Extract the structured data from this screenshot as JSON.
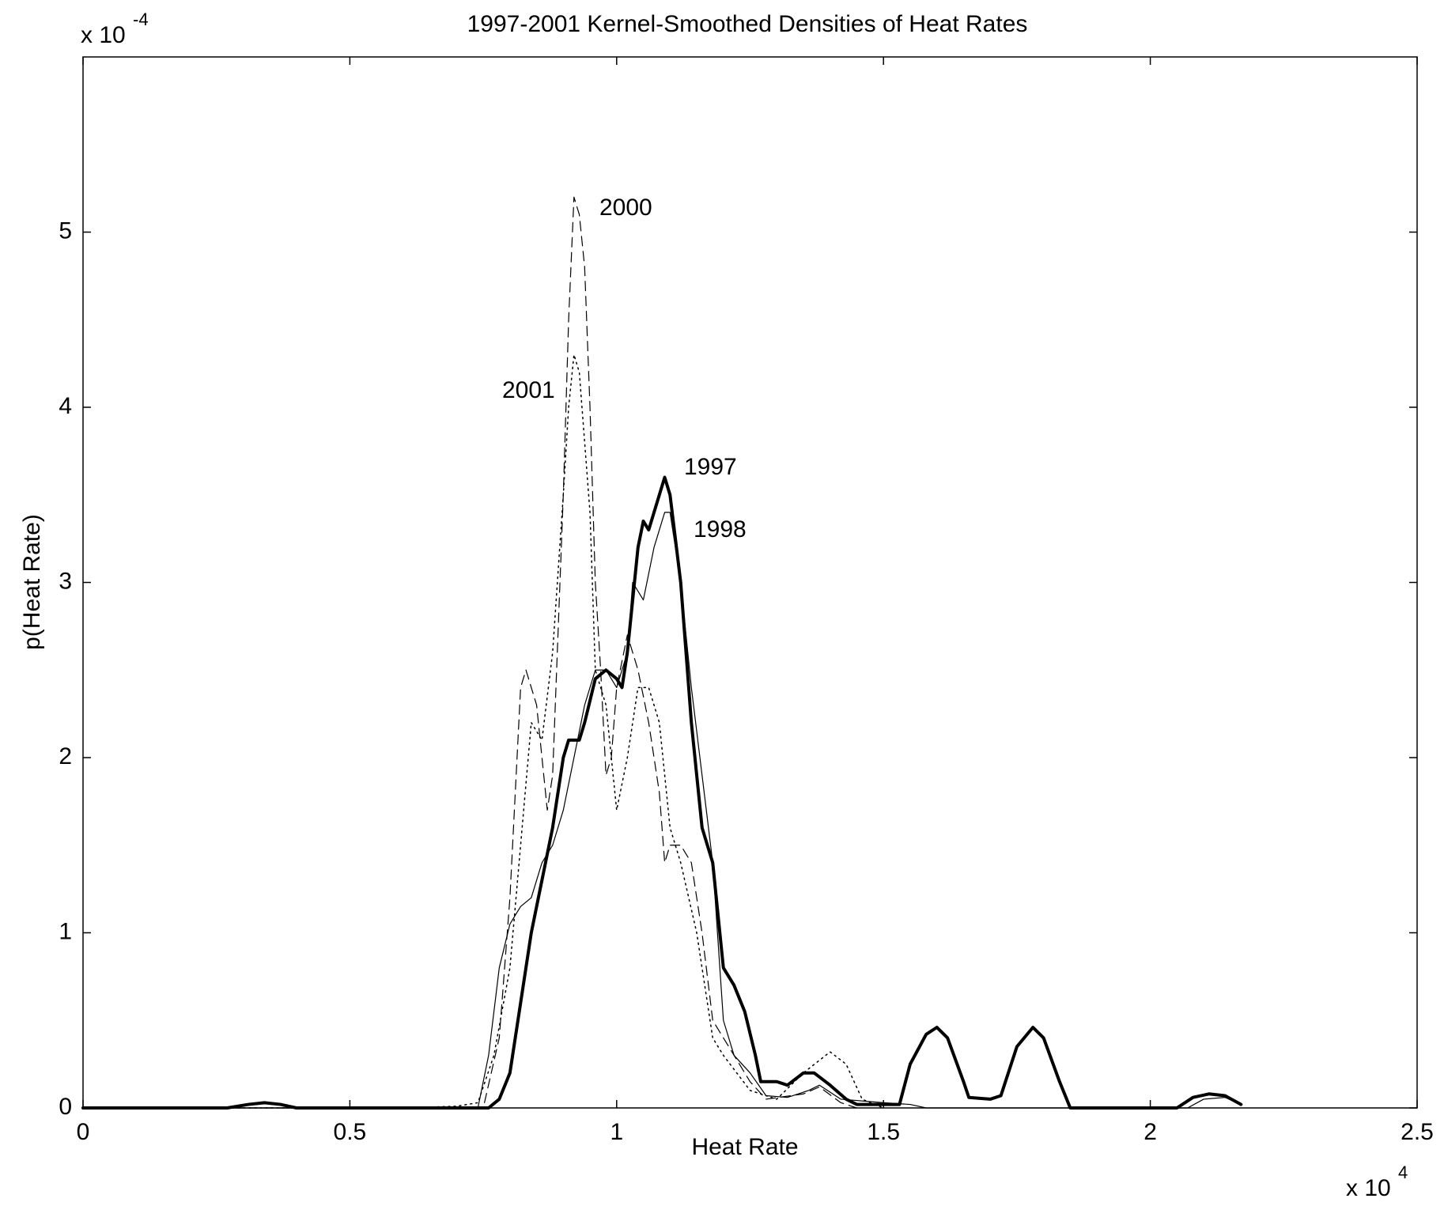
{
  "chart_data": {
    "type": "line",
    "title": "1997-2001 Kernel-Smoothed Densities of Heat Rates",
    "x_label": "Heat Rate",
    "y_label": "p(Heat Rate)",
    "x_multiplier": {
      "base": "x 10",
      "exponent": "4"
    },
    "y_multiplier": {
      "base": "x 10",
      "exponent": "-4"
    },
    "xlim": [
      0,
      2.5
    ],
    "ylim": [
      0,
      6
    ],
    "xticks": [
      0,
      0.5,
      1,
      1.5,
      2,
      2.5
    ],
    "yticks": [
      0,
      1,
      2,
      3,
      4,
      5
    ],
    "grid": false,
    "series": [
      {
        "name": "1997",
        "color": "#000000",
        "width": 4,
        "dash": "solid",
        "x": [
          0,
          0.27,
          0.31,
          0.34,
          0.37,
          0.4,
          0.76,
          0.78,
          0.8,
          0.82,
          0.84,
          0.86,
          0.88,
          0.9,
          0.91,
          0.93,
          0.94,
          0.96,
          0.98,
          1.0,
          1.01,
          1.02,
          1.04,
          1.05,
          1.06,
          1.07,
          1.09,
          1.1,
          1.12,
          1.14,
          1.16,
          1.18,
          1.2,
          1.22,
          1.24,
          1.26,
          1.27,
          1.3,
          1.32,
          1.35,
          1.37,
          1.4,
          1.43,
          1.45,
          1.48,
          1.53,
          1.55,
          1.58,
          1.6,
          1.62,
          1.65,
          1.66,
          1.7,
          1.72,
          1.75,
          1.78,
          1.8,
          1.83,
          1.85,
          2.05,
          2.08,
          2.11,
          2.14,
          2.17
        ],
        "values": [
          0,
          0,
          0.02,
          0.03,
          0.02,
          0,
          0,
          0.05,
          0.2,
          0.6,
          1.0,
          1.3,
          1.6,
          2.0,
          2.1,
          2.1,
          2.2,
          2.45,
          2.5,
          2.45,
          2.4,
          2.6,
          3.2,
          3.35,
          3.3,
          3.4,
          3.6,
          3.5,
          3.0,
          2.2,
          1.6,
          1.4,
          0.8,
          0.7,
          0.55,
          0.3,
          0.15,
          0.15,
          0.13,
          0.2,
          0.2,
          0.13,
          0.05,
          0.02,
          0.02,
          0.02,
          0.25,
          0.42,
          0.46,
          0.4,
          0.15,
          0.06,
          0.05,
          0.07,
          0.35,
          0.46,
          0.4,
          0.15,
          0,
          0,
          0.06,
          0.08,
          0.07,
          0.02
        ]
      },
      {
        "name": "1998",
        "color": "#000000",
        "width": 1.2,
        "dash": "solid",
        "x": [
          0,
          0.74,
          0.76,
          0.78,
          0.8,
          0.82,
          0.84,
          0.86,
          0.88,
          0.9,
          0.92,
          0.94,
          0.96,
          0.98,
          1.0,
          1.02,
          1.03,
          1.05,
          1.07,
          1.09,
          1.1,
          1.12,
          1.14,
          1.16,
          1.18,
          1.2,
          1.22,
          1.25,
          1.28,
          1.32,
          1.36,
          1.38,
          1.42,
          1.5,
          1.55,
          1.58,
          2.07,
          2.1,
          2.14,
          2.17
        ],
        "values": [
          0,
          0,
          0.3,
          0.8,
          1.05,
          1.15,
          1.2,
          1.4,
          1.5,
          1.7,
          2.0,
          2.3,
          2.5,
          2.5,
          2.4,
          2.6,
          3.0,
          2.9,
          3.2,
          3.4,
          3.4,
          3.0,
          2.4,
          1.9,
          1.4,
          0.5,
          0.3,
          0.2,
          0.07,
          0.06,
          0.1,
          0.13,
          0.05,
          0.03,
          0.02,
          0,
          0,
          0.05,
          0.06,
          0.02
        ]
      },
      {
        "name": "2000",
        "color": "#000000",
        "width": 1.2,
        "dash": "dashed",
        "x": [
          0,
          0.75,
          0.78,
          0.8,
          0.82,
          0.83,
          0.85,
          0.87,
          0.88,
          0.9,
          0.91,
          0.92,
          0.93,
          0.94,
          0.95,
          0.96,
          0.97,
          0.98,
          0.99,
          1.0,
          1.02,
          1.04,
          1.06,
          1.08,
          1.09,
          1.1,
          1.12,
          1.14,
          1.16,
          1.18,
          1.2,
          1.22,
          1.25,
          1.28,
          1.35,
          1.38,
          1.42,
          1.45
        ],
        "values": [
          0,
          0,
          0.4,
          1.2,
          2.4,
          2.5,
          2.3,
          1.7,
          1.9,
          3.5,
          4.5,
          5.2,
          5.1,
          4.8,
          4.0,
          3.0,
          2.5,
          1.9,
          2.0,
          2.4,
          2.7,
          2.5,
          2.2,
          1.8,
          1.4,
          1.5,
          1.5,
          1.4,
          1.0,
          0.5,
          0.4,
          0.3,
          0.15,
          0.05,
          0.08,
          0.12,
          0.03,
          0
        ]
      },
      {
        "name": "2001",
        "color": "#000000",
        "width": 1.5,
        "dash": "dotted",
        "x": [
          0,
          0.6,
          0.7,
          0.74,
          0.77,
          0.8,
          0.82,
          0.84,
          0.86,
          0.88,
          0.9,
          0.91,
          0.92,
          0.93,
          0.95,
          0.96,
          0.98,
          1.0,
          1.02,
          1.04,
          1.06,
          1.08,
          1.1,
          1.12,
          1.15,
          1.18,
          1.2,
          1.25,
          1.3,
          1.35,
          1.4,
          1.43,
          1.46,
          1.5
        ],
        "values": [
          0,
          0,
          0.01,
          0.03,
          0.3,
          0.8,
          1.5,
          2.2,
          2.1,
          2.6,
          3.5,
          4.0,
          4.3,
          4.2,
          3.4,
          2.5,
          2.3,
          1.7,
          2.0,
          2.4,
          2.4,
          2.2,
          1.6,
          1.4,
          1.0,
          0.4,
          0.3,
          0.1,
          0.05,
          0.2,
          0.32,
          0.25,
          0.05,
          0
        ]
      }
    ]
  }
}
